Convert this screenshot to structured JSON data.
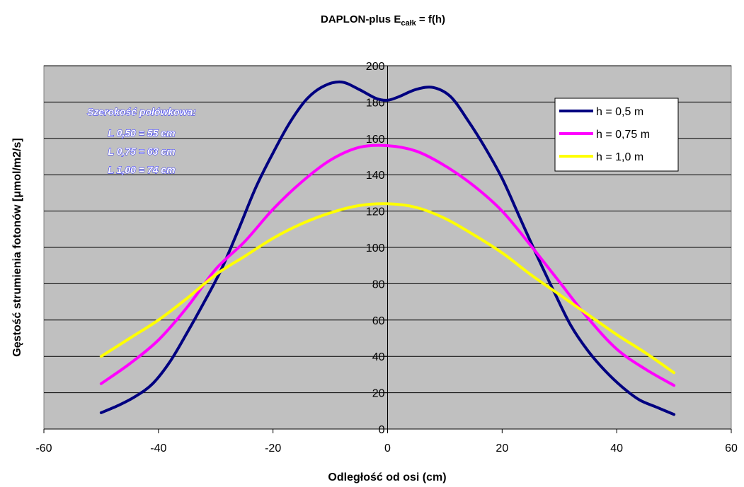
{
  "chart_data": {
    "type": "line",
    "title": "DAPLON-plus  E",
    "title_subscript": "całk",
    "title_suffix": " = f(h)",
    "xlabel": "Odległość od osi (cm)",
    "ylabel": "Gęstość strumienia fotonów [μmol/m2/s]",
    "xlim": [
      -60,
      60
    ],
    "ylim": [
      0,
      200
    ],
    "x_ticks": [
      -60,
      -40,
      -20,
      0,
      20,
      40,
      60
    ],
    "y_ticks": [
      0,
      20,
      40,
      60,
      80,
      100,
      120,
      140,
      160,
      180,
      200
    ],
    "grid": "horizontal",
    "plot_background": "#c0c0c0",
    "legend_position": "top-right",
    "series": [
      {
        "name": "h = 0,5 m",
        "color": "#000080",
        "x": [
          -50,
          -47,
          -44,
          -41,
          -38,
          -35,
          -32,
          -29,
          -26,
          -23,
          -20,
          -17,
          -14,
          -11,
          -8,
          -5,
          -2,
          0,
          2,
          5,
          8,
          11,
          14,
          17,
          20,
          23,
          26,
          29,
          32,
          35,
          38,
          41,
          44,
          47,
          50
        ],
        "y": [
          9,
          13,
          18,
          25,
          37,
          53,
          70,
          88,
          110,
          133,
          152,
          169,
          182,
          189,
          191,
          187,
          182,
          181,
          183,
          187,
          188,
          183,
          170,
          155,
          138,
          117,
          96,
          76,
          57,
          43,
          32,
          23,
          16,
          12,
          8
        ]
      },
      {
        "name": "h = 0,75 m",
        "color": "#ff00ff",
        "x": [
          -50,
          -45,
          -40,
          -35,
          -30,
          -25,
          -20,
          -15,
          -10,
          -5,
          0,
          5,
          10,
          15,
          20,
          25,
          30,
          35,
          40,
          45,
          50
        ],
        "y": [
          25,
          36,
          49,
          67,
          88,
          103,
          121,
          136,
          148,
          155,
          156,
          153,
          145,
          134,
          120,
          101,
          81,
          61,
          44,
          33,
          24
        ]
      },
      {
        "name": "h = 1,0 m",
        "color": "#ffff00",
        "x": [
          -50,
          -45,
          -40,
          -35,
          -30,
          -25,
          -20,
          -15,
          -10,
          -5,
          0,
          5,
          10,
          15,
          20,
          25,
          30,
          35,
          40,
          45,
          50
        ],
        "y": [
          40,
          50,
          60,
          72,
          85,
          95,
          105,
          113,
          119,
          123,
          124,
          122,
          116,
          107,
          97,
          85,
          74,
          63,
          52,
          42,
          31
        ]
      }
    ],
    "annotation": {
      "heading": "Szerokość połówkowa:",
      "lines": [
        "L 0,50 = 55 cm",
        "L 0,75 = 63 cm",
        "L 1,00 = 74 cm"
      ]
    }
  }
}
